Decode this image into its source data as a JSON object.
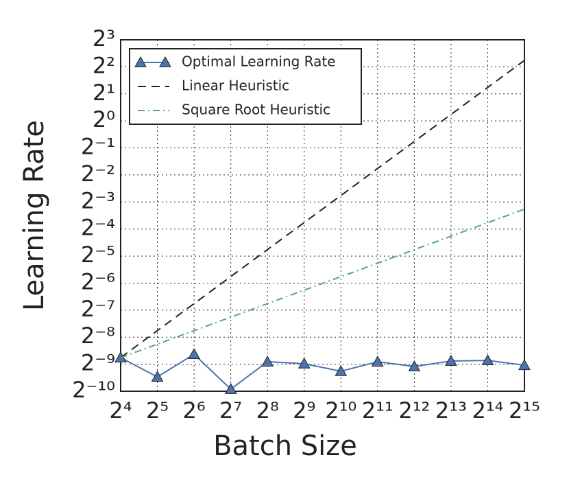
{
  "chart_data": {
    "type": "line",
    "xlabel": "Batch Size",
    "ylabel": "Learning Rate",
    "xscale": "log",
    "yscale": "log",
    "grid": true,
    "legend": "upper left",
    "xlim": [
      16,
      32768
    ],
    "ylim": [
      0.0009765625,
      8
    ],
    "xticks": [
      {
        "value": 16,
        "label": "2⁴"
      },
      {
        "value": 32,
        "label": "2⁵"
      },
      {
        "value": 64,
        "label": "2⁶"
      },
      {
        "value": 128,
        "label": "2⁷"
      },
      {
        "value": 256,
        "label": "2⁸"
      },
      {
        "value": 512,
        "label": "2⁹"
      },
      {
        "value": 1024,
        "label": "2¹⁰"
      },
      {
        "value": 2048,
        "label": "2¹¹"
      },
      {
        "value": 4096,
        "label": "2¹²"
      },
      {
        "value": 8192,
        "label": "2¹³"
      },
      {
        "value": 16384,
        "label": "2¹⁴"
      },
      {
        "value": 32768,
        "label": "2¹⁵"
      }
    ],
    "yticks": [
      {
        "value": 0.0009765625,
        "label": "2⁻¹⁰"
      },
      {
        "value": 0.001953125,
        "label": "2⁻⁹"
      },
      {
        "value": 0.00390625,
        "label": "2⁻⁸"
      },
      {
        "value": 0.0078125,
        "label": "2⁻⁷"
      },
      {
        "value": 0.015625,
        "label": "2⁻⁶"
      },
      {
        "value": 0.03125,
        "label": "2⁻⁵"
      },
      {
        "value": 0.0625,
        "label": "2⁻⁴"
      },
      {
        "value": 0.125,
        "label": "2⁻³"
      },
      {
        "value": 0.25,
        "label": "2⁻²"
      },
      {
        "value": 0.5,
        "label": "2⁻¹"
      },
      {
        "value": 1,
        "label": "2⁰"
      },
      {
        "value": 2,
        "label": "2¹"
      },
      {
        "value": 4,
        "label": "2²"
      },
      {
        "value": 8,
        "label": "2³"
      }
    ],
    "series": [
      {
        "name": "Optimal Learning Rate",
        "color": "#4c72b0",
        "style": "solid",
        "marker": "triangle",
        "x": [
          16,
          32,
          64,
          128,
          256,
          512,
          1024,
          2048,
          4096,
          8192,
          16384,
          32768
        ],
        "values": [
          0.00231,
          0.00141,
          0.00252,
          0.00103,
          0.00208,
          0.00198,
          0.00163,
          0.00208,
          0.00184,
          0.00212,
          0.00215,
          0.0019
        ]
      },
      {
        "name": "Linear Heuristic",
        "color": "#222222",
        "style": "dashed",
        "x": [
          16,
          32768
        ],
        "values": [
          0.00231,
          4.72
        ]
      },
      {
        "name": "Square Root Heuristic",
        "color": "#55a868",
        "style": "dashdot",
        "x": [
          16,
          32768
        ],
        "values": [
          0.00231,
          0.104
        ]
      }
    ]
  }
}
